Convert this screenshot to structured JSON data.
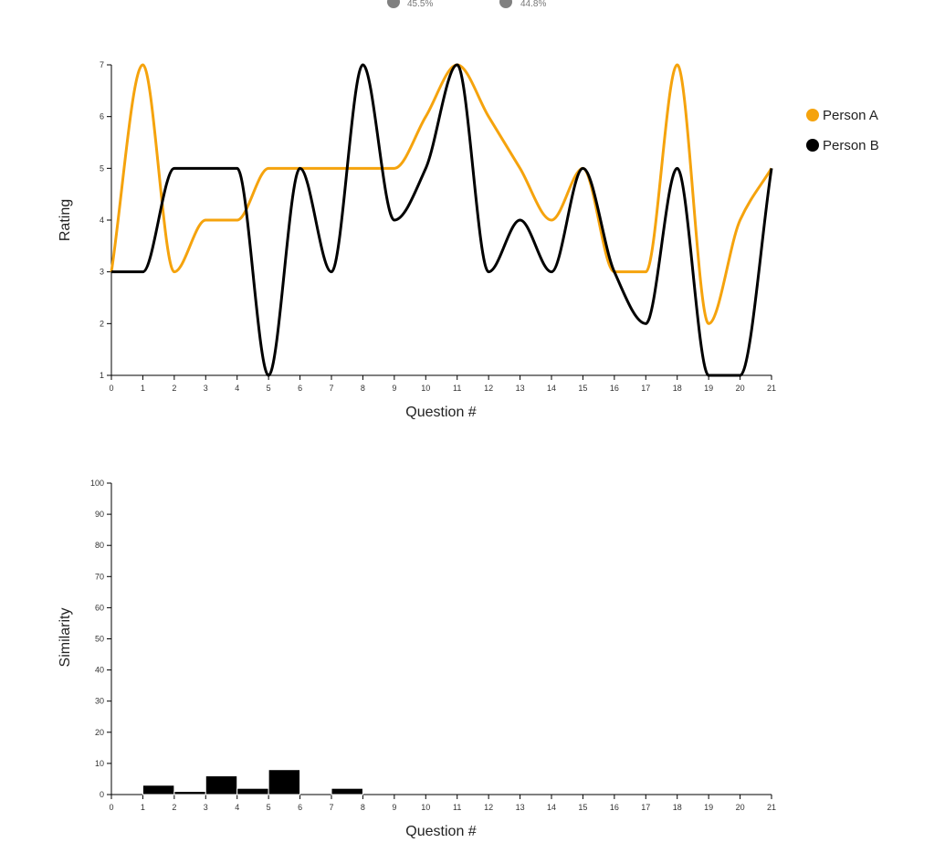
{
  "summary": {
    "items": [
      {
        "label": "45.5%",
        "color": "#808080"
      },
      {
        "label": "44.8%",
        "color": "#808080"
      }
    ]
  },
  "chart_data": [
    {
      "type": "line",
      "xlabel": "Question #",
      "ylabel": "Rating",
      "xlim": [
        0,
        21
      ],
      "ylim": [
        1,
        7
      ],
      "x_ticks": [
        0,
        1,
        2,
        3,
        4,
        5,
        6,
        7,
        8,
        9,
        10,
        11,
        12,
        13,
        14,
        15,
        16,
        17,
        18,
        19,
        20,
        21
      ],
      "y_ticks": [
        1,
        2,
        3,
        4,
        5,
        6,
        7
      ],
      "x": [
        0,
        1,
        2,
        3,
        4,
        5,
        6,
        7,
        8,
        9,
        10,
        11,
        12,
        13,
        14,
        15,
        16,
        17,
        18,
        19,
        20,
        21
      ],
      "series": [
        {
          "name": "Person A",
          "color": "#f5a30d",
          "values": [
            3,
            7,
            3,
            4,
            4,
            5,
            5,
            5,
            5,
            5,
            6,
            7,
            6,
            5,
            4,
            5,
            3,
            3,
            7,
            2,
            4,
            5
          ]
        },
        {
          "name": "Person B",
          "color": "#000000",
          "values": [
            3,
            3,
            5,
            5,
            5,
            1,
            5,
            3,
            7,
            4,
            5,
            7,
            3,
            4,
            3,
            5,
            3,
            2,
            5,
            1,
            1,
            5
          ]
        }
      ],
      "legend": "right",
      "grid": false
    },
    {
      "type": "bar",
      "xlabel": "Question #",
      "ylabel": "Similarity",
      "xlim": [
        0,
        21
      ],
      "ylim": [
        0,
        100
      ],
      "x_ticks": [
        0,
        1,
        2,
        3,
        4,
        5,
        6,
        7,
        8,
        9,
        10,
        11,
        12,
        13,
        14,
        15,
        16,
        17,
        18,
        19,
        20,
        21
      ],
      "y_ticks": [
        0,
        10,
        20,
        30,
        40,
        50,
        60,
        70,
        80,
        90,
        100
      ],
      "bars": [
        {
          "start": 1,
          "end": 2,
          "value": 3
        },
        {
          "start": 2,
          "end": 3,
          "value": 1
        },
        {
          "start": 3,
          "end": 4,
          "value": 6
        },
        {
          "start": 4,
          "end": 5,
          "value": 2
        },
        {
          "start": 5,
          "end": 6,
          "value": 8
        },
        {
          "start": 7,
          "end": 8,
          "value": 2
        }
      ],
      "color": "#000000",
      "grid": false
    }
  ]
}
